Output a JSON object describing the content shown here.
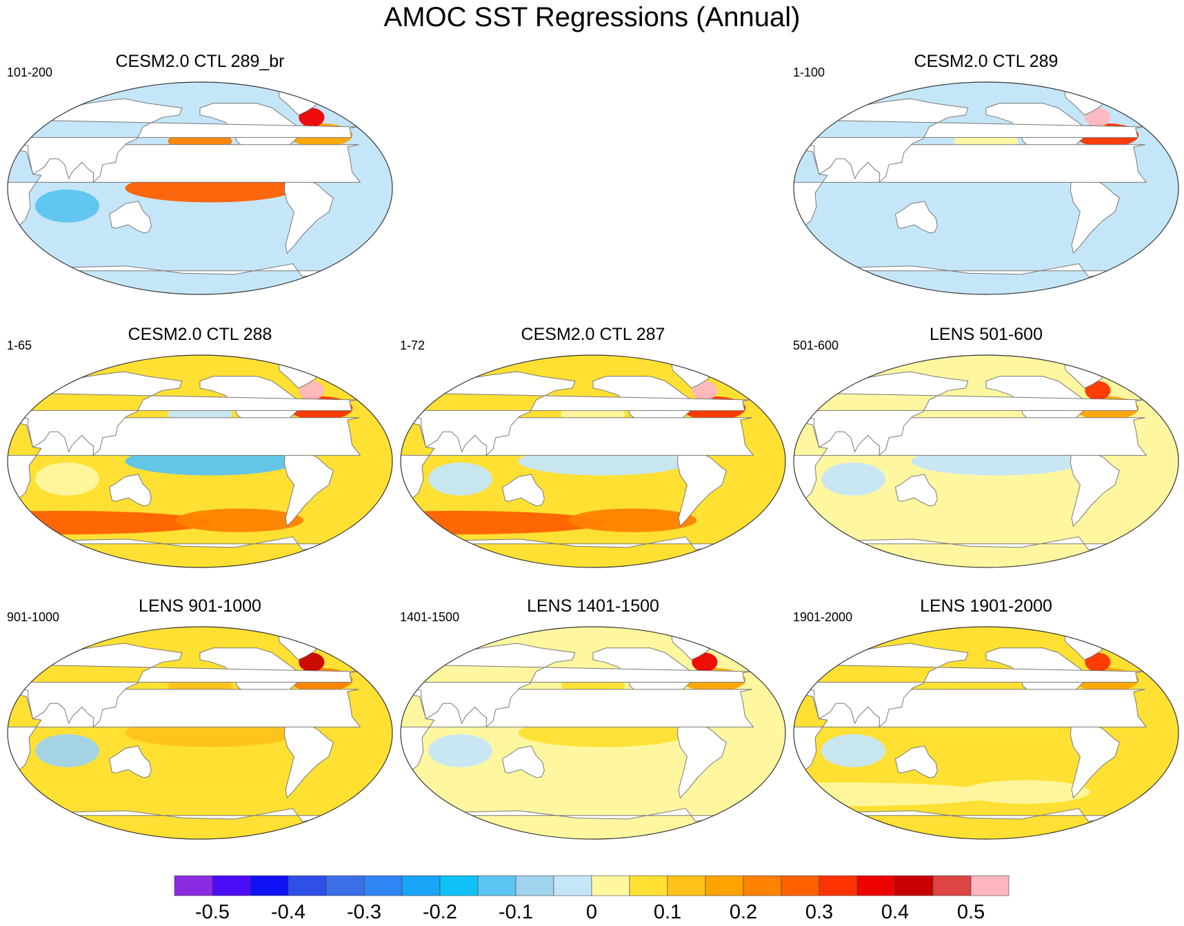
{
  "chart_data": {
    "type": "map",
    "title": "AMOC SST Regressions (Annual)",
    "projection": "Robinson (global)",
    "panels": [
      {
        "title": "CESM2.0 CTL 289_br",
        "period": "101-200",
        "ne_atlantic": 0.35,
        "tropical_pacific": 0.25,
        "southern_ocean": -0.05,
        "general": -0.05
      },
      {
        "title": "CESM2.0 CTL 289",
        "period": "1-100",
        "ne_atlantic": 0.55,
        "tropical_pacific": -0.05,
        "southern_ocean": -0.05,
        "general": -0.05
      },
      {
        "title": "CESM2.0 CTL 288",
        "period": "1-65",
        "ne_atlantic": 0.55,
        "tropical_pacific": -0.15,
        "southern_ocean": 0.25,
        "general": 0.05
      },
      {
        "title": "CESM2.0 CTL 287",
        "period": "1-72",
        "ne_atlantic": 0.55,
        "tropical_pacific": -0.05,
        "southern_ocean": 0.25,
        "general": 0.05
      },
      {
        "title": "LENS 501-600",
        "period": "501-600",
        "ne_atlantic": 0.3,
        "tropical_pacific": -0.05,
        "southern_ocean": 0.02,
        "general": 0.02
      },
      {
        "title": "LENS 901-1000",
        "period": "901-1000",
        "ne_atlantic": 0.4,
        "tropical_pacific": 0.12,
        "southern_ocean": 0.08,
        "general": 0.08
      },
      {
        "title": "LENS 1401-1500",
        "period": "1401-1500",
        "ne_atlantic": 0.35,
        "tropical_pacific": 0.05,
        "southern_ocean": 0.02,
        "general": 0.02
      },
      {
        "title": "LENS 1901-2000",
        "period": "1901-2000",
        "ne_atlantic": 0.3,
        "tropical_pacific": 0.05,
        "southern_ocean": 0.02,
        "general": 0.05
      }
    ],
    "colorbar": {
      "levels": [
        -0.55,
        -0.5,
        -0.45,
        -0.4,
        -0.35,
        -0.3,
        -0.25,
        -0.2,
        -0.15,
        -0.1,
        -0.05,
        0,
        0.05,
        0.1,
        0.15,
        0.2,
        0.25,
        0.3,
        0.35,
        0.4,
        0.45,
        0.5,
        0.55
      ],
      "colors": [
        "#8a2be2",
        "#4b0cf7",
        "#1010f5",
        "#2f50e6",
        "#3c6ee8",
        "#2f86f4",
        "#18a4f7",
        "#10c2f8",
        "#5cc4f0",
        "#9fd3ee",
        "#c5e6f8",
        "#fff7a0",
        "#ffe033",
        "#ffc21a",
        "#ffa300",
        "#ff8200",
        "#ff6000",
        "#ff3300",
        "#ee0000",
        "#c80000",
        "#dd4444",
        "#ffb6c1"
      ],
      "tick_labels": [
        "-0.5",
        "-0.4",
        "-0.3",
        "-0.2",
        "-0.1",
        "0",
        "0.1",
        "0.2",
        "0.3",
        "0.4",
        "0.5"
      ]
    }
  }
}
